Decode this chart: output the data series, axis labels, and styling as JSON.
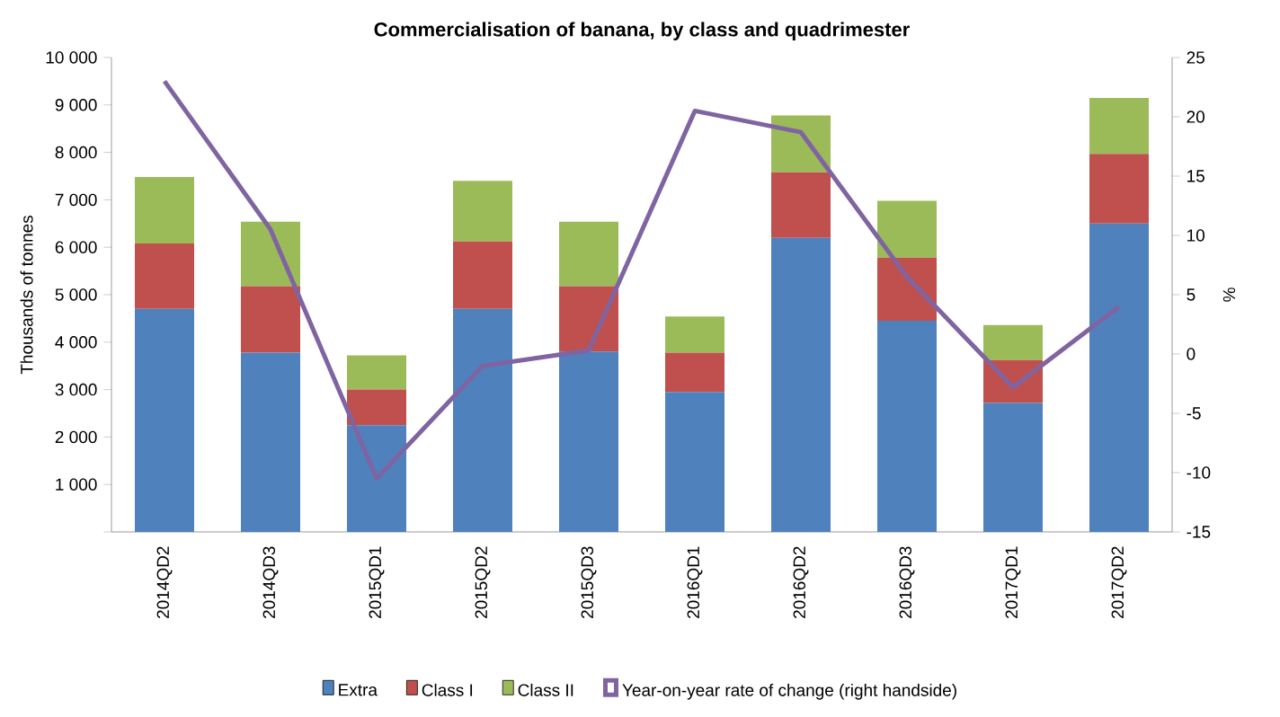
{
  "chart_data": {
    "type": "bar",
    "title": "Commercialisation  of banana, by class and quadrimester",
    "ylabel": "Thousands of tonnes",
    "y2label": "%",
    "categories": [
      "2014QD2",
      "2014QD3",
      "2015QD1",
      "2015QD2",
      "2015QD3",
      "2016QD1",
      "2016QD2",
      "2016QD3",
      "2017QD1",
      "2017QD2"
    ],
    "stacked": true,
    "legend": "bottom",
    "grid": false,
    "ylim": [
      0,
      10000
    ],
    "yticks": [
      {
        "value": 0,
        "label": null
      },
      {
        "value": 1000,
        "label": "1 000"
      },
      {
        "value": 2000,
        "label": "2 000"
      },
      {
        "value": 3000,
        "label": "3 000"
      },
      {
        "value": 4000,
        "label": "4 000"
      },
      {
        "value": 5000,
        "label": "5 000"
      },
      {
        "value": 6000,
        "label": "6 000"
      },
      {
        "value": 7000,
        "label": "7 000"
      },
      {
        "value": 8000,
        "label": "8 000"
      },
      {
        "value": 9000,
        "label": "9 000"
      },
      {
        "value": 10000,
        "label": "10 000"
      }
    ],
    "y2lim": [
      -15,
      25
    ],
    "y2ticks": [
      -15,
      -10,
      -5,
      0,
      5,
      10,
      15,
      20,
      25
    ],
    "series": [
      {
        "name": "Extra",
        "color": "#4f81bd",
        "values": [
          4700,
          3780,
          2250,
          4700,
          3800,
          2950,
          6200,
          4450,
          2720,
          6500
        ]
      },
      {
        "name": "Class I",
        "color": "#c0504d",
        "values": [
          1380,
          1400,
          750,
          1420,
          1380,
          830,
          1380,
          1330,
          900,
          1470
        ]
      },
      {
        "name": "Class II",
        "color": "#9bbb59",
        "values": [
          1400,
          1360,
          720,
          1280,
          1360,
          760,
          1200,
          1200,
          740,
          1180
        ]
      },
      {
        "name": "Year-on-year rate of change (right handside)",
        "color": "#8064a2",
        "type": "line",
        "axis": "y2",
        "marker": "none",
        "line_style": "solid",
        "values": [
          23,
          10.5,
          -10.5,
          -1,
          0.3,
          20.5,
          18.7,
          6.5,
          -2.8,
          4
        ]
      }
    ]
  }
}
